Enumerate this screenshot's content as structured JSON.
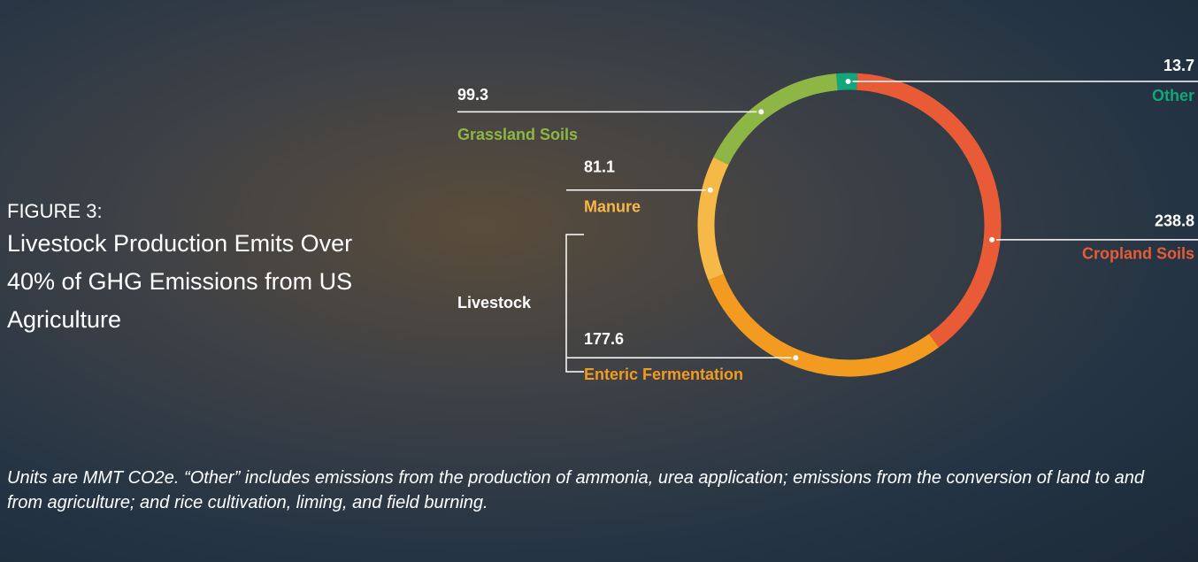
{
  "chart_data": {
    "type": "donut",
    "title": "FIGURE 3:",
    "subtitle": "Livestock Production Emits Over 40% of GHG Emissions from US Agriculture",
    "categories": [
      "Other",
      "Cropland Soils",
      "Enteric Fermentation",
      "Manure",
      "Grassland Soils"
    ],
    "values": [
      13.7,
      238.8,
      177.6,
      81.1,
      99.3
    ],
    "colors": [
      "#12a67a",
      "#e95b36",
      "#f39a20",
      "#f6b847",
      "#8db645"
    ],
    "group_label": "Livestock",
    "note": "Units are MMT CO2e. “Other” includes emissions from the production of ammonia, urea application; emissions from the conversion of land to and from agriculture; and rice cultivation, liming, and field burning."
  }
}
